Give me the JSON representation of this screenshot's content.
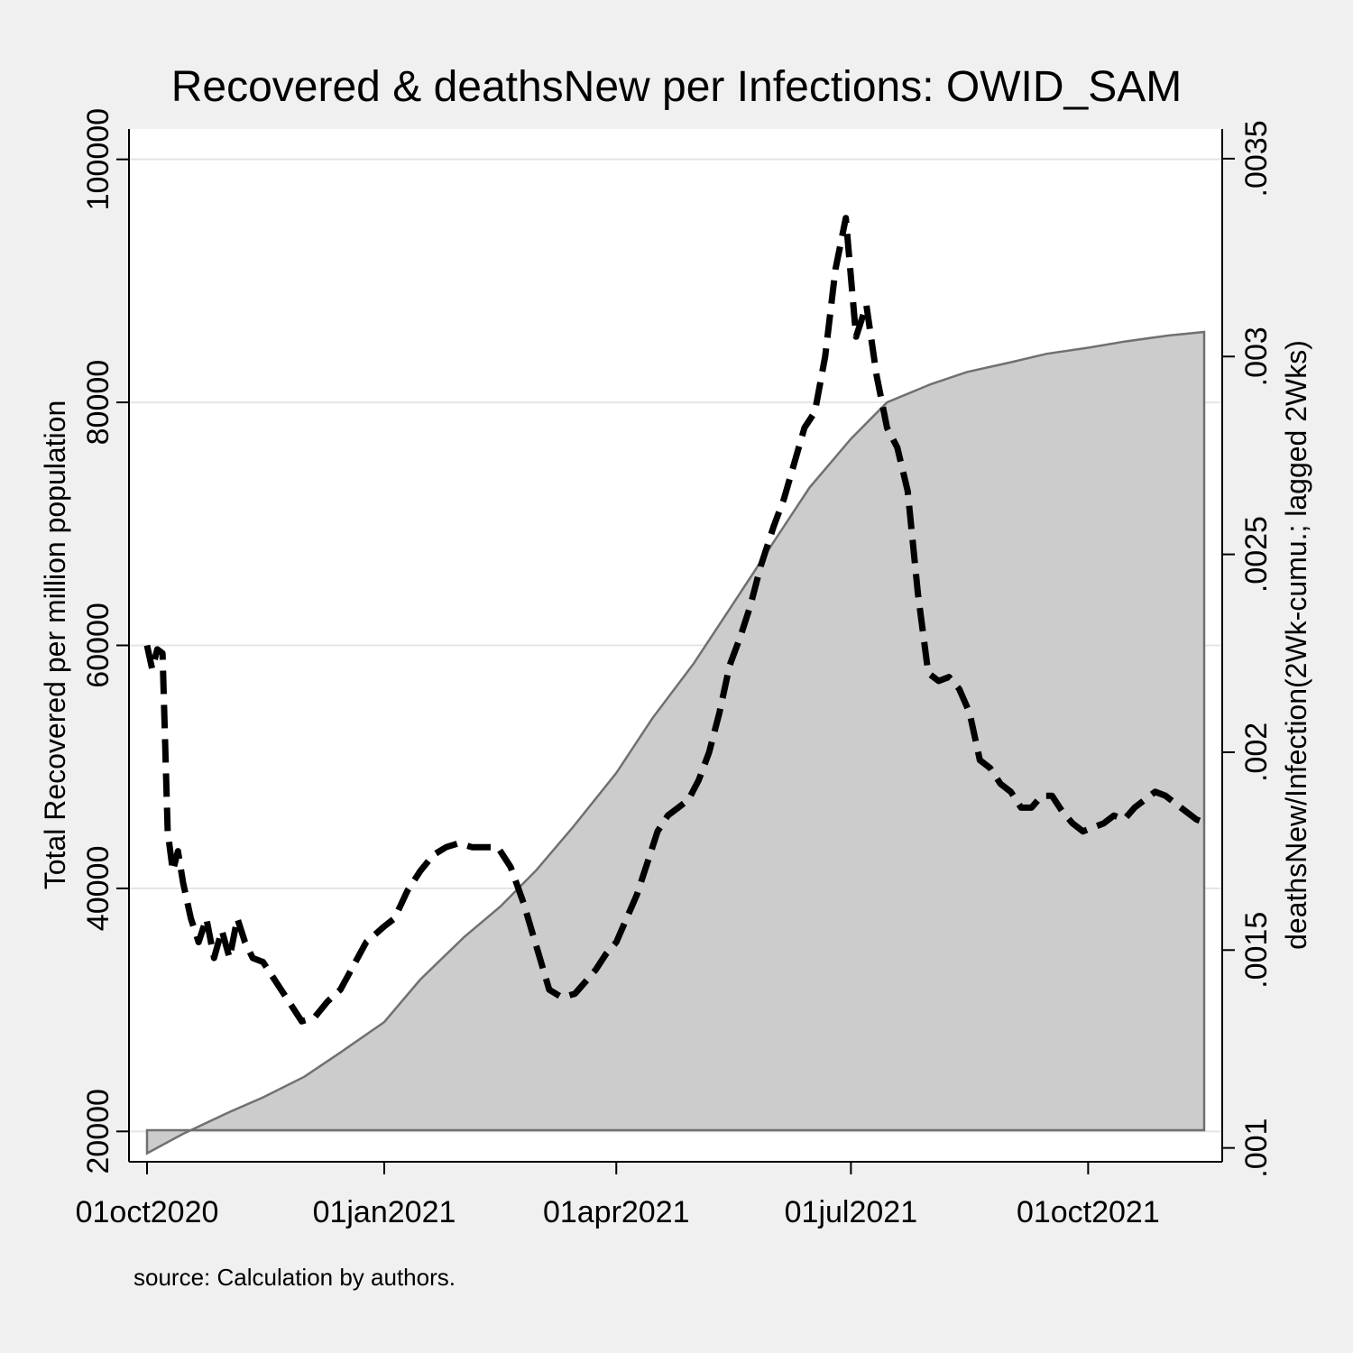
{
  "chart_data": {
    "type": "area",
    "title": "Recovered & deathsNew per Infections: OWID_SAM",
    "note": "source: Calculation by authors.",
    "x_axis": {
      "ticks": [
        "2020-10-01",
        "2021-01-01",
        "2021-04-01",
        "2021-07-01",
        "2021-10-01"
      ],
      "tick_labels": [
        "01oct2020",
        "01jan2021",
        "01apr2021",
        "01jul2021",
        "01oct2021"
      ],
      "range": [
        "2020-09-24",
        "2021-11-22"
      ]
    },
    "y_left": {
      "label": "Total Recovered per million population",
      "range": [
        17500,
        102500
      ],
      "ticks": [
        20000,
        40000,
        60000,
        80000,
        100000
      ],
      "tick_labels": [
        "20000",
        "40000",
        "60000",
        "80000",
        "100000"
      ]
    },
    "y_right": {
      "label": "deathsNew/Infection(2Wk-cumu.; lagged 2Wks)",
      "range": [
        0.000965,
        0.003575
      ],
      "ticks": [
        0.001,
        0.0015,
        0.002,
        0.0025,
        0.003,
        0.0035
      ],
      "tick_labels": [
        ".001",
        ".0015",
        ".002",
        ".0025",
        ".003",
        ".0035"
      ]
    },
    "grid": true,
    "series": [
      {
        "axis": "left",
        "style": "area",
        "color": "#cccccc",
        "points": [
          [
            "2020-10-01",
            18200
          ],
          [
            "2020-10-15",
            19800
          ],
          [
            "2020-11-01",
            21500
          ],
          [
            "2020-11-15",
            22800
          ],
          [
            "2020-12-01",
            24500
          ],
          [
            "2020-12-15",
            26500
          ],
          [
            "2021-01-01",
            29000
          ],
          [
            "2021-01-15",
            32500
          ],
          [
            "2021-02-01",
            36000
          ],
          [
            "2021-02-15",
            38500
          ],
          [
            "2021-03-01",
            41500
          ],
          [
            "2021-03-15",
            45000
          ],
          [
            "2021-04-01",
            49500
          ],
          [
            "2021-04-15",
            54000
          ],
          [
            "2021-05-01",
            58500
          ],
          [
            "2021-05-15",
            63000
          ],
          [
            "2021-06-01",
            68500
          ],
          [
            "2021-06-15",
            73000
          ],
          [
            "2021-07-01",
            77000
          ],
          [
            "2021-07-15",
            80000
          ],
          [
            "2021-08-01",
            81500
          ],
          [
            "2021-08-15",
            82500
          ],
          [
            "2021-09-01",
            83300
          ],
          [
            "2021-09-15",
            84000
          ],
          [
            "2021-10-01",
            84500
          ],
          [
            "2021-10-15",
            85000
          ],
          [
            "2021-11-01",
            85500
          ],
          [
            "2021-11-15",
            85800
          ]
        ]
      },
      {
        "axis": "right",
        "style": "dashed",
        "color": "#000000",
        "points": [
          [
            "2020-10-01",
            0.00227
          ],
          [
            "2020-10-03",
            0.00221
          ],
          [
            "2020-10-05",
            0.00226
          ],
          [
            "2020-10-07",
            0.00225
          ],
          [
            "2020-10-09",
            0.0018
          ],
          [
            "2020-10-11",
            0.0017
          ],
          [
            "2020-10-13",
            0.00175
          ],
          [
            "2020-10-15",
            0.00167
          ],
          [
            "2020-10-18",
            0.00158
          ],
          [
            "2020-10-21",
            0.00152
          ],
          [
            "2020-10-24",
            0.00158
          ],
          [
            "2020-10-27",
            0.00148
          ],
          [
            "2020-10-30",
            0.00155
          ],
          [
            "2020-11-02",
            0.00148
          ],
          [
            "2020-11-05",
            0.00158
          ],
          [
            "2020-11-08",
            0.00152
          ],
          [
            "2020-11-11",
            0.00148
          ],
          [
            "2020-11-15",
            0.00147
          ],
          [
            "2020-11-20",
            0.00142
          ],
          [
            "2020-11-25",
            0.00137
          ],
          [
            "2020-11-30",
            0.00132
          ],
          [
            "2020-12-05",
            0.00133
          ],
          [
            "2020-12-10",
            0.00137
          ],
          [
            "2020-12-15",
            0.0014
          ],
          [
            "2020-12-20",
            0.00146
          ],
          [
            "2020-12-25",
            0.00152
          ],
          [
            "2021-01-01",
            0.00156
          ],
          [
            "2021-01-05",
            0.00158
          ],
          [
            "2021-01-10",
            0.00165
          ],
          [
            "2021-01-15",
            0.0017
          ],
          [
            "2021-01-20",
            0.00174
          ],
          [
            "2021-01-25",
            0.00176
          ],
          [
            "2021-01-30",
            0.00177
          ],
          [
            "2021-02-04",
            0.00176
          ],
          [
            "2021-02-09",
            0.00176
          ],
          [
            "2021-02-14",
            0.00176
          ],
          [
            "2021-02-19",
            0.00171
          ],
          [
            "2021-02-24",
            0.00162
          ],
          [
            "2021-03-01",
            0.00151
          ],
          [
            "2021-03-06",
            0.0014
          ],
          [
            "2021-03-11",
            0.00138
          ],
          [
            "2021-03-16",
            0.00139
          ],
          [
            "2021-03-20",
            0.00142
          ],
          [
            "2021-03-24",
            0.00145
          ],
          [
            "2021-03-28",
            0.00149
          ],
          [
            "2021-04-01",
            0.00152
          ],
          [
            "2021-04-05",
            0.00158
          ],
          [
            "2021-04-09",
            0.00164
          ],
          [
            "2021-04-13",
            0.00172
          ],
          [
            "2021-04-17",
            0.0018
          ],
          [
            "2021-04-21",
            0.00184
          ],
          [
            "2021-04-25",
            0.00186
          ],
          [
            "2021-04-29",
            0.00188
          ],
          [
            "2021-05-03",
            0.00193
          ],
          [
            "2021-05-07",
            0.002
          ],
          [
            "2021-05-11",
            0.0021
          ],
          [
            "2021-05-15",
            0.00222
          ],
          [
            "2021-05-19",
            0.00229
          ],
          [
            "2021-05-23",
            0.00237
          ],
          [
            "2021-05-27",
            0.00247
          ],
          [
            "2021-06-01",
            0.00257
          ],
          [
            "2021-06-05",
            0.00264
          ],
          [
            "2021-06-09",
            0.00273
          ],
          [
            "2021-06-13",
            0.00282
          ],
          [
            "2021-06-17",
            0.00286
          ],
          [
            "2021-06-21",
            0.003
          ],
          [
            "2021-06-25",
            0.00322
          ],
          [
            "2021-06-29",
            0.00335
          ],
          [
            "2021-07-03",
            0.00305
          ],
          [
            "2021-07-07",
            0.00313
          ],
          [
            "2021-07-11",
            0.00295
          ],
          [
            "2021-07-15",
            0.00282
          ],
          [
            "2021-07-19",
            0.00277
          ],
          [
            "2021-07-23",
            0.00266
          ],
          [
            "2021-07-27",
            0.0024
          ],
          [
            "2021-07-31",
            0.0022
          ],
          [
            "2021-08-04",
            0.00218
          ],
          [
            "2021-08-08",
            0.00219
          ],
          [
            "2021-08-12",
            0.00216
          ],
          [
            "2021-08-16",
            0.0021
          ],
          [
            "2021-08-20",
            0.00198
          ],
          [
            "2021-08-24",
            0.00196
          ],
          [
            "2021-08-28",
            0.00192
          ],
          [
            "2021-09-01",
            0.0019
          ],
          [
            "2021-09-05",
            0.00186
          ],
          [
            "2021-09-09",
            0.00186
          ],
          [
            "2021-09-13",
            0.00189
          ],
          [
            "2021-09-17",
            0.00189
          ],
          [
            "2021-09-21",
            0.00185
          ],
          [
            "2021-09-25",
            0.00182
          ],
          [
            "2021-09-29",
            0.0018
          ],
          [
            "2021-10-03",
            0.00181
          ],
          [
            "2021-10-07",
            0.00182
          ],
          [
            "2021-10-11",
            0.00184
          ],
          [
            "2021-10-15",
            0.00183
          ],
          [
            "2021-10-19",
            0.00186
          ],
          [
            "2021-10-23",
            0.00188
          ],
          [
            "2021-10-27",
            0.0019
          ],
          [
            "2021-10-31",
            0.00189
          ],
          [
            "2021-11-04",
            0.00187
          ],
          [
            "2021-11-08",
            0.00185
          ],
          [
            "2021-11-12",
            0.00183
          ],
          [
            "2021-11-16",
            0.00182
          ]
        ]
      }
    ]
  }
}
